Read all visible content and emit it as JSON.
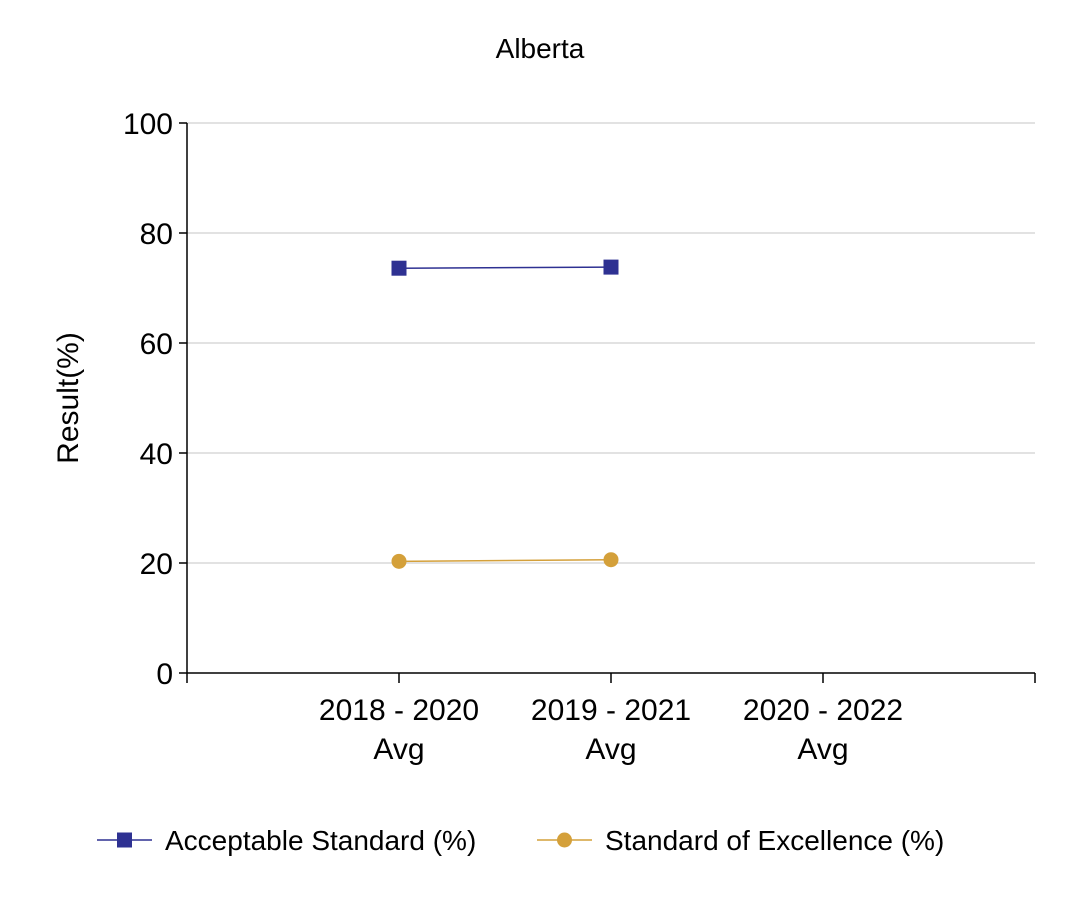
{
  "chart_data": {
    "type": "line",
    "title": "Alberta",
    "xlabel": "",
    "ylabel": "Result(%)",
    "ylim": [
      0,
      100
    ],
    "yticks": [
      0,
      20,
      40,
      60,
      80,
      100
    ],
    "grid": true,
    "categories": [
      [
        "2018 - 2020",
        "Avg"
      ],
      [
        "2019 - 2021",
        "Avg"
      ],
      [
        "2020 - 2022",
        "Avg"
      ]
    ],
    "series": [
      {
        "name": "Acceptable Standard (%)",
        "marker": "square",
        "color": "#2e3192",
        "values": [
          73.6,
          73.8,
          null
        ]
      },
      {
        "name": "Standard of Excellence (%)",
        "marker": "circle",
        "color": "#d4a03a",
        "values": [
          20.3,
          20.6,
          null
        ]
      }
    ],
    "legend_position": "bottom"
  }
}
